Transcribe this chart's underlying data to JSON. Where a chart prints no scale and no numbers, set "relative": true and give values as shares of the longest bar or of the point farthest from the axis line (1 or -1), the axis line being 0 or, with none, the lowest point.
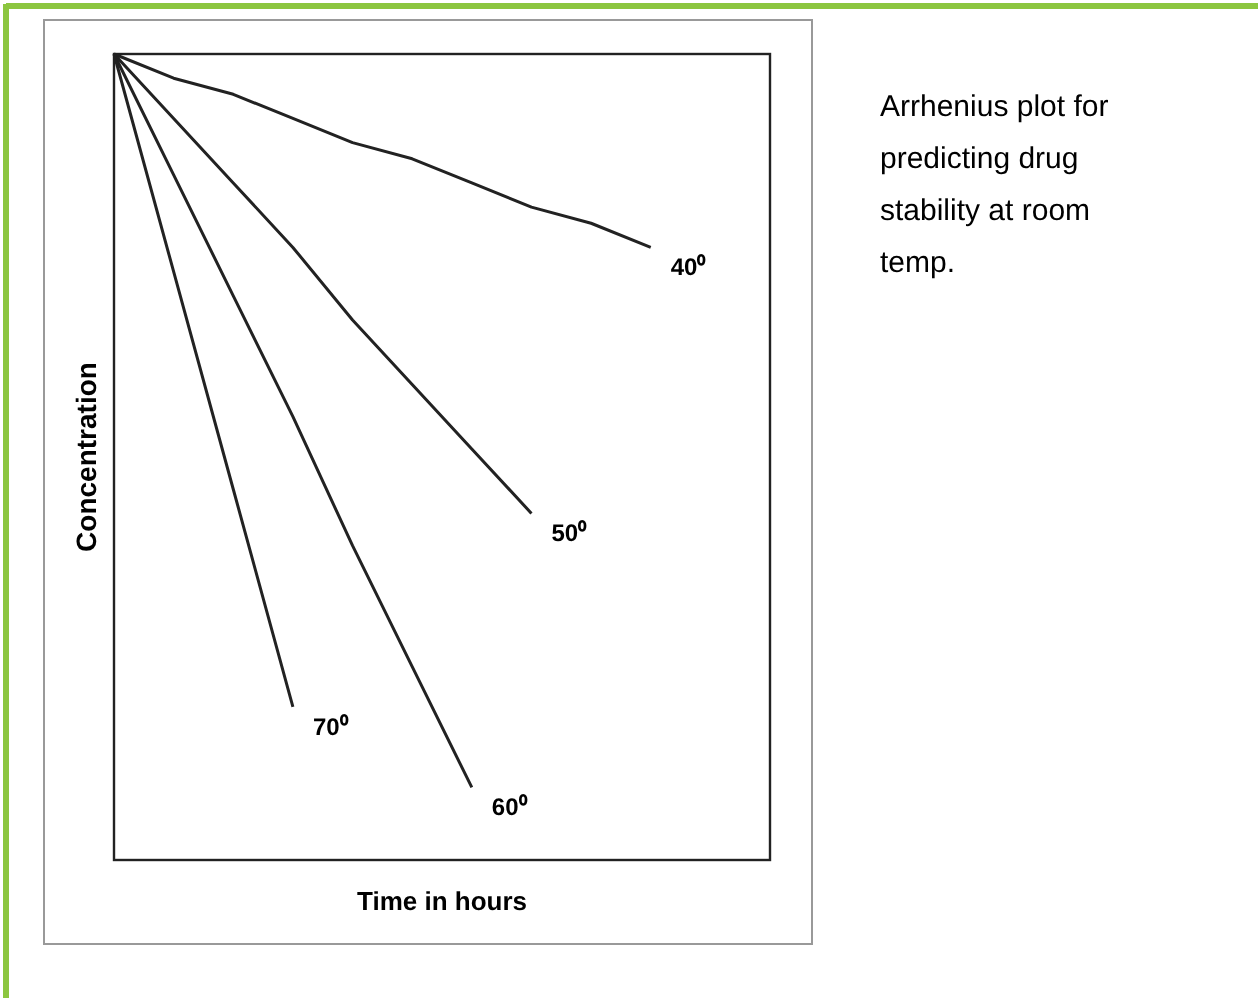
{
  "chart_data": {
    "type": "line",
    "relative": true,
    "xlabel": "Time in hours",
    "ylabel": "Concentration",
    "marker": "none",
    "line_style": "solid",
    "categories": [
      null,
      null,
      null,
      null,
      null,
      null,
      null,
      null,
      null,
      null,
      null,
      null
    ],
    "annotations": [
      "Arrhenius plot for predicting drug stability at room temp."
    ],
    "series": [
      {
        "name": "40⁰",
        "color": "#222222",
        "values": [
          1,
          0.97,
          0.95,
          0.92,
          0.89,
          0.87,
          0.84,
          0.81,
          0.79,
          0.76,
          null,
          null
        ]
      },
      {
        "name": "50⁰",
        "color": "#222222",
        "values": [
          1,
          0.92,
          0.84,
          0.76,
          0.67,
          0.59,
          0.51,
          0.43,
          null,
          null,
          null,
          null
        ]
      },
      {
        "name": "60⁰",
        "color": "#222222",
        "values": [
          1,
          0.85,
          0.7,
          0.55,
          0.39,
          0.24,
          0.09,
          null,
          null,
          null,
          null,
          null
        ]
      },
      {
        "name": "70⁰",
        "color": "#222222",
        "values": [
          1,
          0.73,
          0.46,
          0.19,
          null,
          null,
          null,
          null,
          null,
          null,
          null,
          null
        ]
      }
    ]
  }
}
